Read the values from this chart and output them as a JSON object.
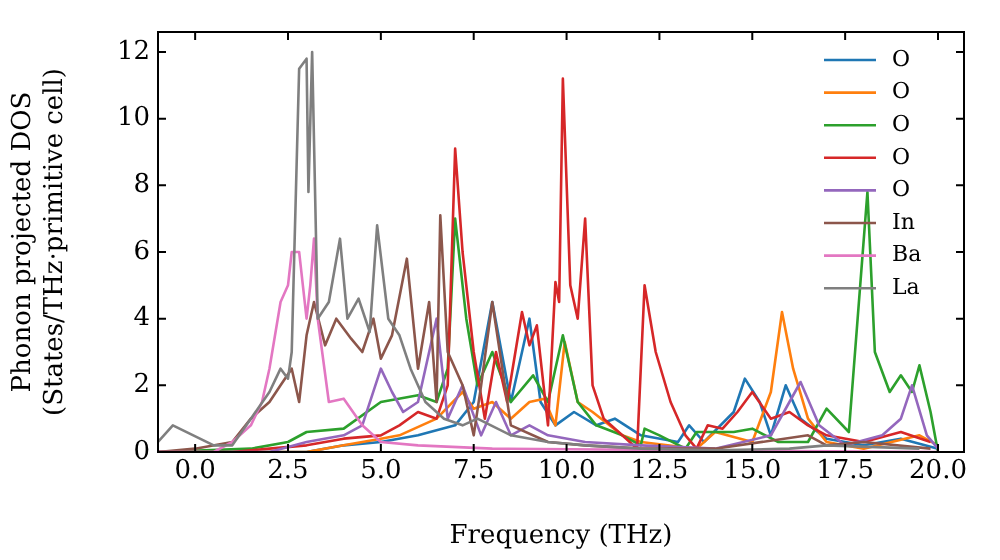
{
  "chart_data": {
    "type": "line",
    "xlabel": "Frequency (THz)",
    "ylabel": "Phonon projected DOS\n(States/THz·primitive cell)",
    "xlim": [
      -1,
      20.7
    ],
    "ylim": [
      0,
      12.6
    ],
    "xticks": [
      {
        "value": 0,
        "label": "0.0"
      },
      {
        "value": 2.5,
        "label": "2.5"
      },
      {
        "value": 5,
        "label": "5.0"
      },
      {
        "value": 7.5,
        "label": "7.5"
      },
      {
        "value": 10,
        "label": "10.0"
      },
      {
        "value": 12.5,
        "label": "12.5"
      },
      {
        "value": 15,
        "label": "15.0"
      },
      {
        "value": 17.5,
        "label": "17.5"
      },
      {
        "value": 20,
        "label": "20.0"
      }
    ],
    "yticks": [
      0,
      2,
      4,
      6,
      8,
      10,
      12
    ],
    "grid": false,
    "legend": "top right",
    "marker": "none",
    "line_style": "solid",
    "series": [
      {
        "name": "O",
        "color": "#1f77b4",
        "x": [
          -1,
          3,
          4,
          5,
          6,
          7,
          7.5,
          8,
          8.5,
          9,
          9.3,
          9.7,
          10.2,
          10.8,
          11.3,
          12,
          13,
          13.3,
          13.7,
          14.5,
          14.8,
          15.2,
          15.5,
          15.9,
          16.3,
          17,
          18,
          19,
          20
        ],
        "values": [
          0,
          0,
          0.2,
          0.3,
          0.5,
          0.8,
          1.5,
          4.5,
          1.5,
          4,
          1.5,
          0.8,
          1.2,
          0.8,
          1,
          0.5,
          0.3,
          0.8,
          0.3,
          1.2,
          2.2,
          1.5,
          0.5,
          2,
          1,
          0.4,
          0.2,
          0.4,
          0.1
        ]
      },
      {
        "name": "O",
        "color": "#ff7f0e",
        "x": [
          -1,
          3,
          4,
          5,
          5.5,
          6.5,
          7.2,
          7.5,
          8,
          8.5,
          9,
          9.4,
          9.7,
          9.95,
          10.3,
          10.7,
          11.5,
          12,
          13.5,
          14,
          15,
          15.5,
          15.8,
          16.1,
          16.5,
          17,
          18,
          19.5,
          20
        ],
        "values": [
          0,
          0,
          0.2,
          0.4,
          0.5,
          1,
          1.8,
          1.3,
          1.5,
          1,
          1.5,
          1.6,
          0.8,
          3.3,
          1.5,
          1.2,
          0.5,
          0.3,
          0.1,
          0.6,
          0.3,
          1.8,
          4.2,
          2.5,
          1,
          0.3,
          0.1,
          0.5,
          0.2
        ]
      },
      {
        "name": "O",
        "color": "#2ca02c",
        "x": [
          -1,
          1.5,
          2.5,
          3,
          4,
          5,
          6,
          6.5,
          6.8,
          7,
          7.3,
          7.6,
          8,
          8.5,
          9.1,
          9.5,
          9.9,
          10.3,
          10.8,
          11.5,
          12,
          12.1,
          12.5,
          13.2,
          13.5,
          14.5,
          15,
          15.7,
          16.5,
          17,
          17.6,
          18.1,
          18.3,
          18.7,
          19,
          19.3,
          19.5,
          19.8,
          20
        ],
        "values": [
          0,
          0.1,
          0.3,
          0.6,
          0.7,
          1.5,
          1.7,
          1.5,
          2.5,
          7,
          4,
          2,
          3,
          1.5,
          2.3,
          1.5,
          3.5,
          1.5,
          0.8,
          0.5,
          0.2,
          0.7,
          0.5,
          0.1,
          0.6,
          0.6,
          0.7,
          0.3,
          0.3,
          1.3,
          0.6,
          7.8,
          3,
          1.8,
          2.3,
          1.8,
          2.6,
          1.2,
          0
        ]
      },
      {
        "name": "O",
        "color": "#d62728",
        "x": [
          -1,
          1,
          2,
          3,
          4,
          5,
          5.5,
          6,
          6.5,
          6.8,
          7,
          7.2,
          7.5,
          7.8,
          8.1,
          8.4,
          8.8,
          9,
          9.2,
          9.5,
          9.7,
          9.8,
          9.9,
          10.1,
          10.3,
          10.5,
          10.7,
          11,
          11.5,
          11.9,
          12.1,
          12.4,
          12.8,
          13.2,
          13.5,
          13.8,
          14.2,
          14.6,
          15,
          15.5,
          16,
          16.5,
          17,
          18,
          19,
          19.8
        ],
        "values": [
          0,
          0,
          0.1,
          0.2,
          0.4,
          0.5,
          0.8,
          1.2,
          1,
          2,
          9.1,
          6,
          3,
          1,
          3,
          1.5,
          4.2,
          3.2,
          3.8,
          0.8,
          5.1,
          4.5,
          11.2,
          5,
          4,
          7,
          2,
          1,
          0.5,
          0.1,
          5,
          3,
          1.5,
          0.5,
          0.1,
          0.8,
          0.7,
          1.2,
          1.8,
          1,
          1.2,
          0.8,
          0.5,
          0.3,
          0.6,
          0.3
        ]
      },
      {
        "name": "O",
        "color": "#9467bd",
        "x": [
          -1,
          2,
          3,
          4,
          4.5,
          5,
          5.3,
          5.6,
          6,
          6.5,
          6.8,
          7.2,
          7.7,
          8.1,
          8.5,
          9,
          9.5,
          10.5,
          12,
          14,
          15.5,
          16,
          16.3,
          16.8,
          17.5,
          18.5,
          19,
          19.3,
          19.7,
          20
        ],
        "values": [
          0,
          0,
          0.3,
          0.5,
          0.8,
          2.5,
          1.8,
          1.2,
          1.5,
          4,
          1,
          2,
          0.5,
          1.5,
          0.5,
          0.8,
          0.5,
          0.3,
          0.2,
          0.1,
          0.5,
          1.5,
          2.1,
          0.8,
          0.2,
          0.5,
          1,
          2,
          0.5,
          0.1
        ]
      },
      {
        "name": "In",
        "color": "#8c564b",
        "x": [
          -1,
          0,
          1,
          1.5,
          2,
          2.3,
          2.6,
          2.8,
          3,
          3.2,
          3.5,
          3.8,
          4.2,
          4.5,
          4.8,
          5,
          5.3,
          5.7,
          6,
          6.3,
          6.5,
          6.6,
          6.8,
          7.2,
          7.5,
          7.7,
          8,
          8.5,
          9.5,
          10.5,
          12,
          14,
          16.5,
          17,
          18,
          19.8
        ],
        "values": [
          0,
          0.1,
          0.3,
          1,
          1.5,
          2,
          2.5,
          1.5,
          3.5,
          4.5,
          3.2,
          4,
          3.4,
          3,
          4,
          2.8,
          3.5,
          5.8,
          2.5,
          4.5,
          1.5,
          7.1,
          3,
          2,
          0.5,
          2,
          4.5,
          0.8,
          0.3,
          0.2,
          0.1,
          0.1,
          0.5,
          0.2,
          0.3,
          0.1
        ]
      },
      {
        "name": "Ba",
        "color": "#e377c2",
        "x": [
          -1,
          0.5,
          1,
          1.5,
          1.8,
          2,
          2.3,
          2.5,
          2.6,
          2.8,
          3,
          3.1,
          3.2,
          3.3,
          3.6,
          4,
          4.5,
          5,
          6,
          8,
          20
        ],
        "values": [
          0,
          0,
          0.3,
          0.8,
          1.5,
          2.5,
          4.5,
          5,
          6,
          6,
          4,
          5,
          6.4,
          4,
          1.5,
          1.6,
          0.8,
          0.3,
          0.2,
          0.1,
          0
        ]
      },
      {
        "name": "La",
        "color": "#7f7f7f",
        "x": [
          -1,
          -0.6,
          0.5,
          1,
          1.5,
          2,
          2.3,
          2.5,
          2.6,
          2.8,
          3,
          3.05,
          3.15,
          3.3,
          3.6,
          3.9,
          4.1,
          4.4,
          4.7,
          4.9,
          5.2,
          5.5,
          5.8,
          6.2,
          6.7,
          7.2,
          7.6,
          8.5,
          9.5,
          10.5,
          12,
          14,
          16,
          17,
          19.5
        ],
        "values": [
          0.3,
          0.8,
          0.2,
          0.2,
          1,
          1.8,
          2.5,
          2.2,
          3,
          11.5,
          11.8,
          7.8,
          12,
          4,
          4.5,
          6.4,
          4,
          4.6,
          3.6,
          6.8,
          4,
          3.5,
          2.5,
          1.5,
          1,
          0.8,
          1,
          0.5,
          0.3,
          0.2,
          0.1,
          0.05,
          0.1,
          0.2,
          0.1
        ]
      }
    ]
  }
}
